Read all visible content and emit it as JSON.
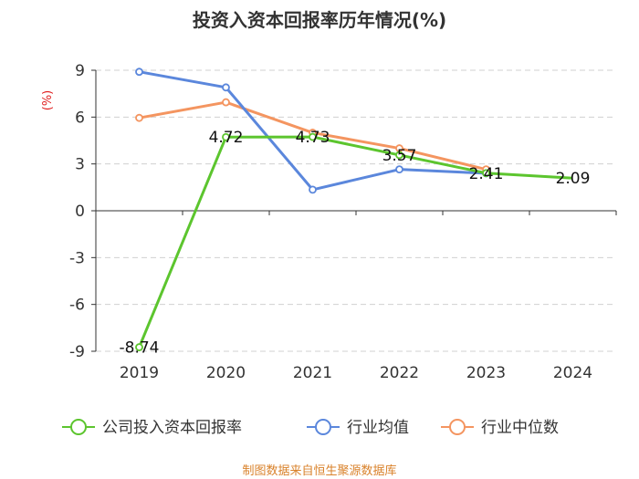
{
  "chart_data": {
    "type": "line",
    "title": "投资入资本回报率历年情况(%)",
    "unit_label": "(%)",
    "x": [
      "2019",
      "2020",
      "2021",
      "2022",
      "2023",
      "2024"
    ],
    "ylim": [
      -9,
      9
    ],
    "yticks": [
      9,
      6,
      3,
      0,
      -3,
      -6,
      -9
    ],
    "grid": true,
    "legend_position": "bottom",
    "series": [
      {
        "name": "公司投入资本回报率",
        "color": "#5cc52e",
        "values": [
          -8.74,
          4.72,
          4.73,
          3.57,
          2.41,
          2.09
        ],
        "labels": [
          "-8.74",
          "4.72",
          "4.73",
          "3.57",
          "2.41",
          "2.09"
        ],
        "marker_last": false
      },
      {
        "name": "行业均值",
        "color": "#5b87dc",
        "values": [
          8.9,
          7.9,
          1.35,
          2.65,
          2.4,
          null
        ]
      },
      {
        "name": "行业中位数",
        "color": "#f49560",
        "values": [
          5.95,
          6.95,
          5.0,
          4.0,
          2.65,
          null
        ]
      }
    ]
  },
  "source": "制图数据来自恒生聚源数据库"
}
